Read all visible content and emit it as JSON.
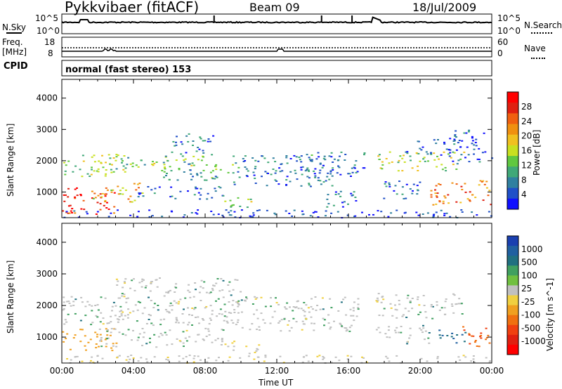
{
  "header": {
    "station": "Pykkvibaer (fitACF)",
    "beam": "Beam 09",
    "date": "18/Jul/2009"
  },
  "noise_panel": {
    "left_label": "N.Sky",
    "left_ticks": [
      "10^5",
      "10^0"
    ],
    "right_ticks": [
      "10^5",
      "10^0"
    ],
    "right_label": "N.Search"
  },
  "freq_panel": {
    "left_label_1": "Freq.",
    "left_label_2": "[MHz]",
    "left_ticks": [
      "18",
      "8"
    ],
    "right_ticks": [
      "60",
      "0"
    ],
    "right_label": "Nave"
  },
  "cpid_panel": {
    "label": "CPID",
    "text": "normal (fast stereo) 153"
  },
  "chart_data": [
    {
      "type": "heatmap",
      "name": "power",
      "ylabel": "Slant Range [km]",
      "yticks": [
        "1000",
        "2000",
        "3000",
        "4000"
      ],
      "ylim": [
        180,
        4600
      ],
      "xlim": [
        0,
        24
      ],
      "colorbar_label": "Power [dB]",
      "colorbar_ticks": [
        "4",
        "8",
        "12",
        "16",
        "20",
        "24",
        "28"
      ],
      "colorbar_colors": [
        "#1010ff",
        "#2050c8",
        "#3080a0",
        "#40a878",
        "#60c840",
        "#c8e020",
        "#f0c020",
        "#f09010",
        "#f06010",
        "#e02010",
        "#ff0000"
      ],
      "echo_bands": [
        {
          "t0": 0.0,
          "t1": 3.0,
          "r0": 300,
          "r1": 1200,
          "level": 26
        },
        {
          "t0": 0.0,
          "t1": 3.5,
          "r0": 1500,
          "r1": 2300,
          "level": 13
        },
        {
          "t0": 1.5,
          "t1": 4.5,
          "r0": 700,
          "r1": 1300,
          "level": 18
        },
        {
          "t0": 3.0,
          "t1": 8.0,
          "r0": 1700,
          "r1": 2200,
          "level": 12
        },
        {
          "t0": 5.5,
          "t1": 10.0,
          "r0": 1400,
          "r1": 2000,
          "level": 10
        },
        {
          "t0": 6.0,
          "t1": 8.5,
          "r0": 2200,
          "r1": 2900,
          "level": 6
        },
        {
          "t0": 4.0,
          "t1": 9.0,
          "r0": 800,
          "r1": 1200,
          "level": 5
        },
        {
          "t0": 9.5,
          "t1": 15.5,
          "r0": 1200,
          "r1": 2200,
          "level": 6
        },
        {
          "t0": 9.0,
          "t1": 11.0,
          "r0": 500,
          "r1": 900,
          "level": 14
        },
        {
          "t0": 13.0,
          "t1": 17.0,
          "r0": 1500,
          "r1": 2300,
          "level": 5
        },
        {
          "t0": 14.5,
          "t1": 16.5,
          "r0": 500,
          "r1": 1100,
          "level": 5
        },
        {
          "t0": 17.5,
          "t1": 22.5,
          "r0": 1700,
          "r1": 2300,
          "level": 14
        },
        {
          "t0": 17.5,
          "t1": 20.0,
          "r0": 800,
          "r1": 1400,
          "level": 5
        },
        {
          "t0": 19.0,
          "t1": 22.0,
          "r0": 2200,
          "r1": 2700,
          "level": 5
        },
        {
          "t0": 20.5,
          "t1": 24.0,
          "r0": 600,
          "r1": 1400,
          "level": 22
        },
        {
          "t0": 21.5,
          "t1": 24.0,
          "r0": 1900,
          "r1": 3000,
          "level": 4
        },
        {
          "t0": 0.0,
          "t1": 24.0,
          "r0": 200,
          "r1": 450,
          "level": 3
        }
      ]
    },
    {
      "type": "heatmap",
      "name": "velocity",
      "ylabel": "Slant Range [km]",
      "xlabel": "Time UT",
      "xticks": [
        "00:00",
        "04:00",
        "08:00",
        "12:00",
        "16:00",
        "20:00",
        "00:00"
      ],
      "yticks": [
        "1000",
        "2000",
        "3000",
        "4000"
      ],
      "ylim": [
        180,
        4600
      ],
      "xlim": [
        0,
        24
      ],
      "colorbar_label": "Velocity [m s^-1]",
      "colorbar_ticks": [
        "1000",
        "500",
        "100",
        "25",
        "-25",
        "-100",
        "-500",
        "-1000"
      ],
      "colorbar_colors": [
        "#1a40b0",
        "#2060a0",
        "#207080",
        "#40a060",
        "#70c040",
        "#c0c0c0",
        "#f0d040",
        "#f0a020",
        "#f07010",
        "#f04010",
        "#e02010",
        "#ff0000"
      ],
      "echo_bands": [
        {
          "t0": 0.0,
          "t1": 3.0,
          "r0": 600,
          "r1": 1300,
          "vel": -400
        },
        {
          "t0": 0.0,
          "t1": 3.5,
          "r0": 1400,
          "r1": 2300,
          "vel": 0
        },
        {
          "t0": 3.0,
          "t1": 10.0,
          "r0": 1400,
          "r1": 2900,
          "vel": 0
        },
        {
          "t0": 2.0,
          "t1": 9.0,
          "r0": 700,
          "r1": 1300,
          "vel": 0
        },
        {
          "t0": 9.0,
          "t1": 16.5,
          "r0": 1200,
          "r1": 2300,
          "vel": 0
        },
        {
          "t0": 9.0,
          "t1": 11.0,
          "r0": 500,
          "r1": 900,
          "vel": -80
        },
        {
          "t0": 17.5,
          "t1": 22.5,
          "r0": 1600,
          "r1": 2400,
          "vel": 0
        },
        {
          "t0": 17.5,
          "t1": 20.5,
          "r0": 800,
          "r1": 1400,
          "vel": 0
        },
        {
          "t0": 21.0,
          "t1": 22.5,
          "r0": 800,
          "r1": 1300,
          "vel": 400
        },
        {
          "t0": 22.3,
          "t1": 24.0,
          "r0": 700,
          "r1": 1400,
          "vel": -700
        },
        {
          "t0": 0.0,
          "t1": 24.0,
          "r0": 200,
          "r1": 450,
          "vel": -40
        }
      ]
    }
  ]
}
